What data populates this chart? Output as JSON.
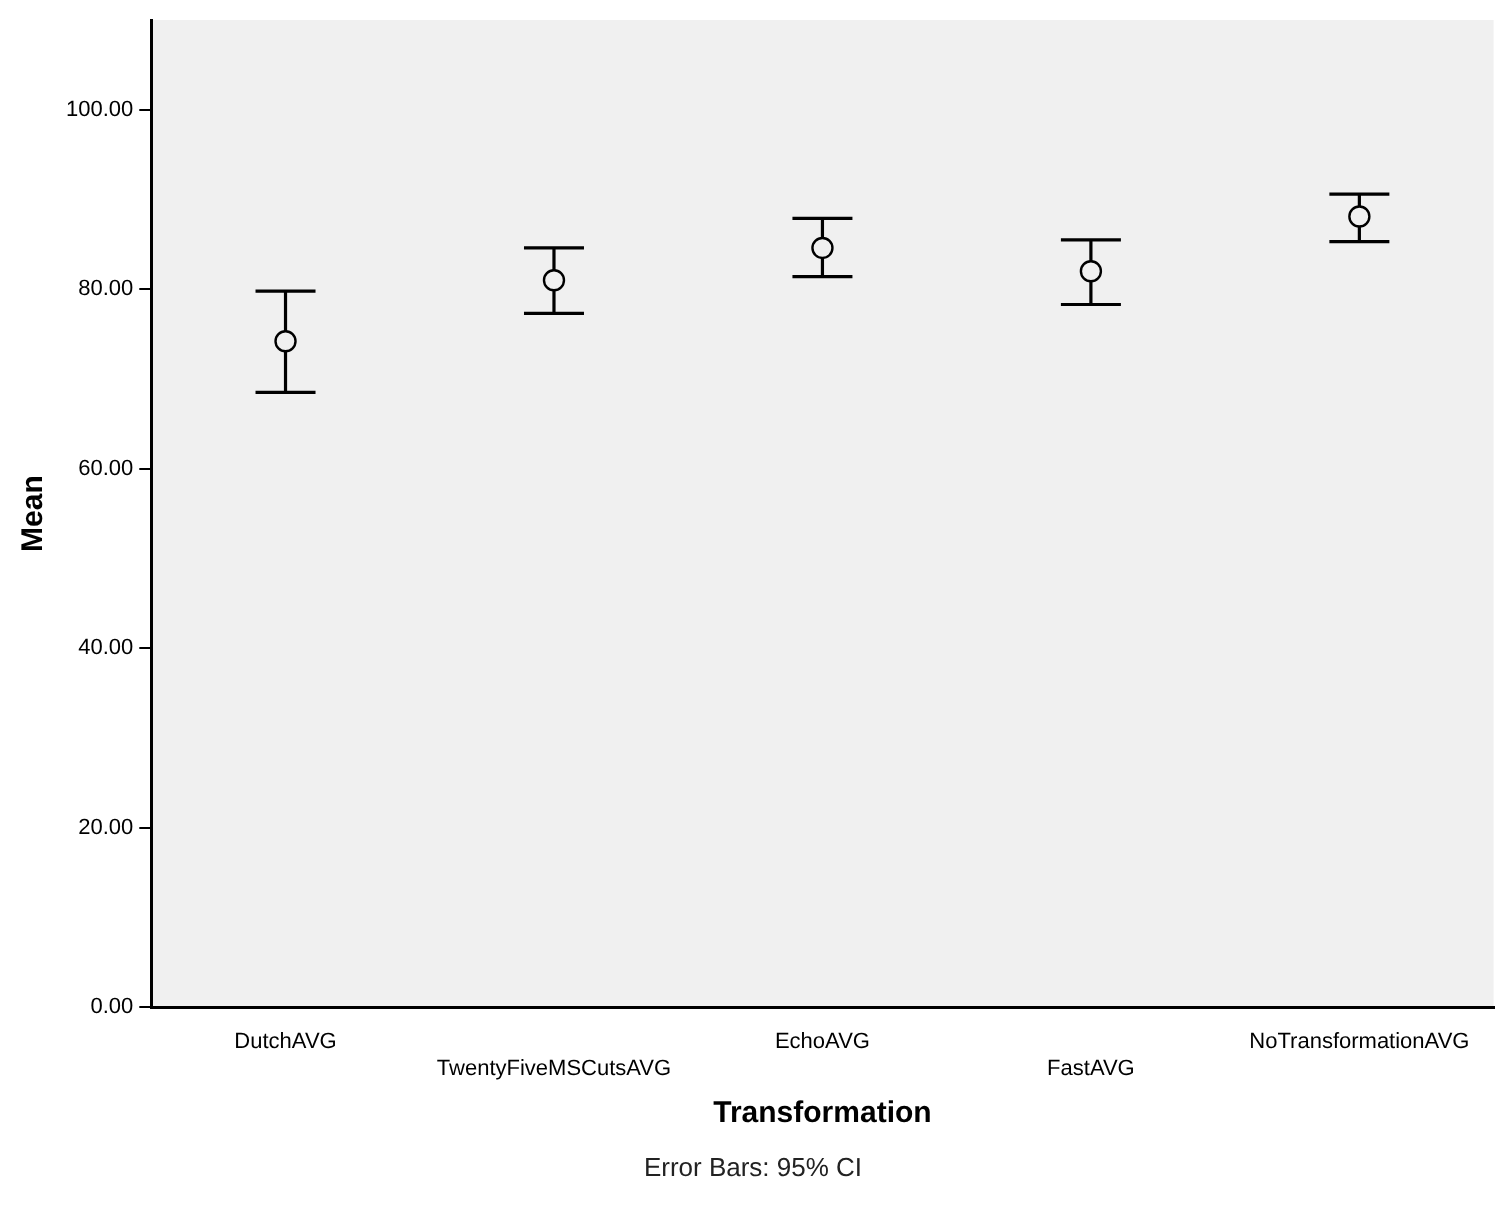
{
  "chart_data": {
    "type": "scatter",
    "xlabel": "Transformation",
    "ylabel": "Mean",
    "categories": [
      "DutchAVG",
      "TwentyFiveMSCutsAVG",
      "EchoAVG",
      "FastAVG",
      "NoTransformationAVG"
    ],
    "series": [
      {
        "color": "#000000",
        "values": [
          74.2,
          81.0,
          84.6,
          82.0,
          88.1
        ],
        "errors": [
          [
            68.5,
            79.8
          ],
          [
            77.3,
            84.6
          ],
          [
            81.4,
            87.9
          ],
          [
            78.3,
            85.5
          ],
          [
            85.3,
            90.6
          ]
        ]
      }
    ],
    "ylim": [
      0,
      110
    ],
    "yticks": [
      {
        "value": 0,
        "label": "0.00"
      },
      {
        "value": 20,
        "label": "20.00"
      },
      {
        "value": 40,
        "label": "40.00"
      },
      {
        "value": 60,
        "label": "60.00"
      },
      {
        "value": 80,
        "label": "80.00"
      },
      {
        "value": 100,
        "label": "100.00"
      }
    ],
    "grid": false,
    "legend": false,
    "marker": "circle",
    "annotations": [
      "Error Bars: 95% CI"
    ]
  }
}
